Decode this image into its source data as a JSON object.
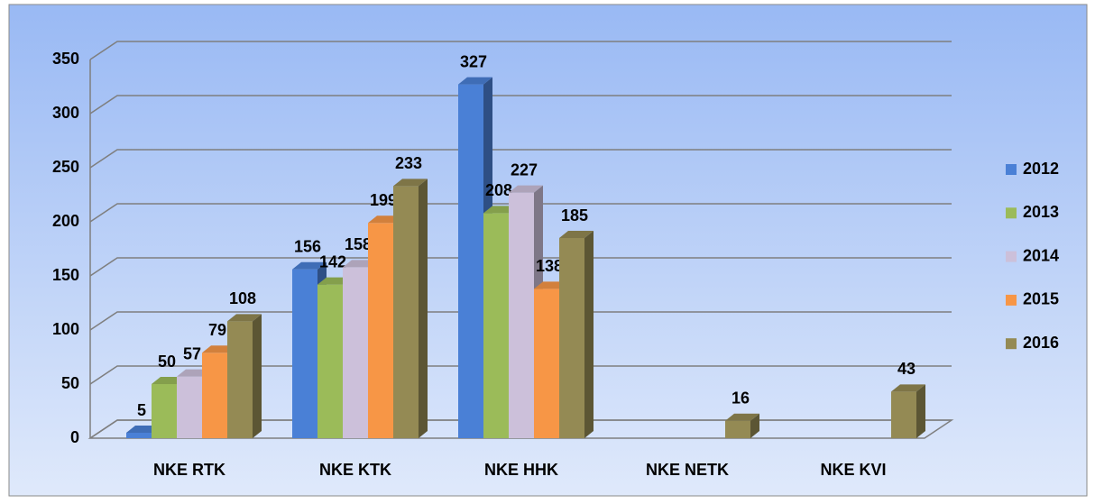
{
  "chart_data": {
    "type": "bar3d",
    "categories": [
      "NKE RTK",
      "NKE KTK",
      "NKE HHK",
      "NKE NETK",
      "NKE KVI"
    ],
    "series": [
      {
        "name": "2012",
        "color": "#4a80d6",
        "values": [
          5,
          156,
          327,
          null,
          null
        ]
      },
      {
        "name": "2013",
        "color": "#9bbb59",
        "values": [
          50,
          142,
          208,
          null,
          null
        ]
      },
      {
        "name": "2014",
        "color": "#ccc0da",
        "values": [
          57,
          158,
          227,
          null,
          null
        ]
      },
      {
        "name": "2015",
        "color": "#f79646",
        "values": [
          79,
          199,
          138,
          null,
          null
        ]
      },
      {
        "name": "2016",
        "color": "#948a54",
        "values": [
          108,
          233,
          185,
          16,
          43
        ]
      }
    ],
    "ylim": [
      0,
      350
    ],
    "yticks": [
      0,
      50,
      100,
      150,
      200,
      250,
      300,
      350
    ],
    "grid": true,
    "legend": "right"
  }
}
